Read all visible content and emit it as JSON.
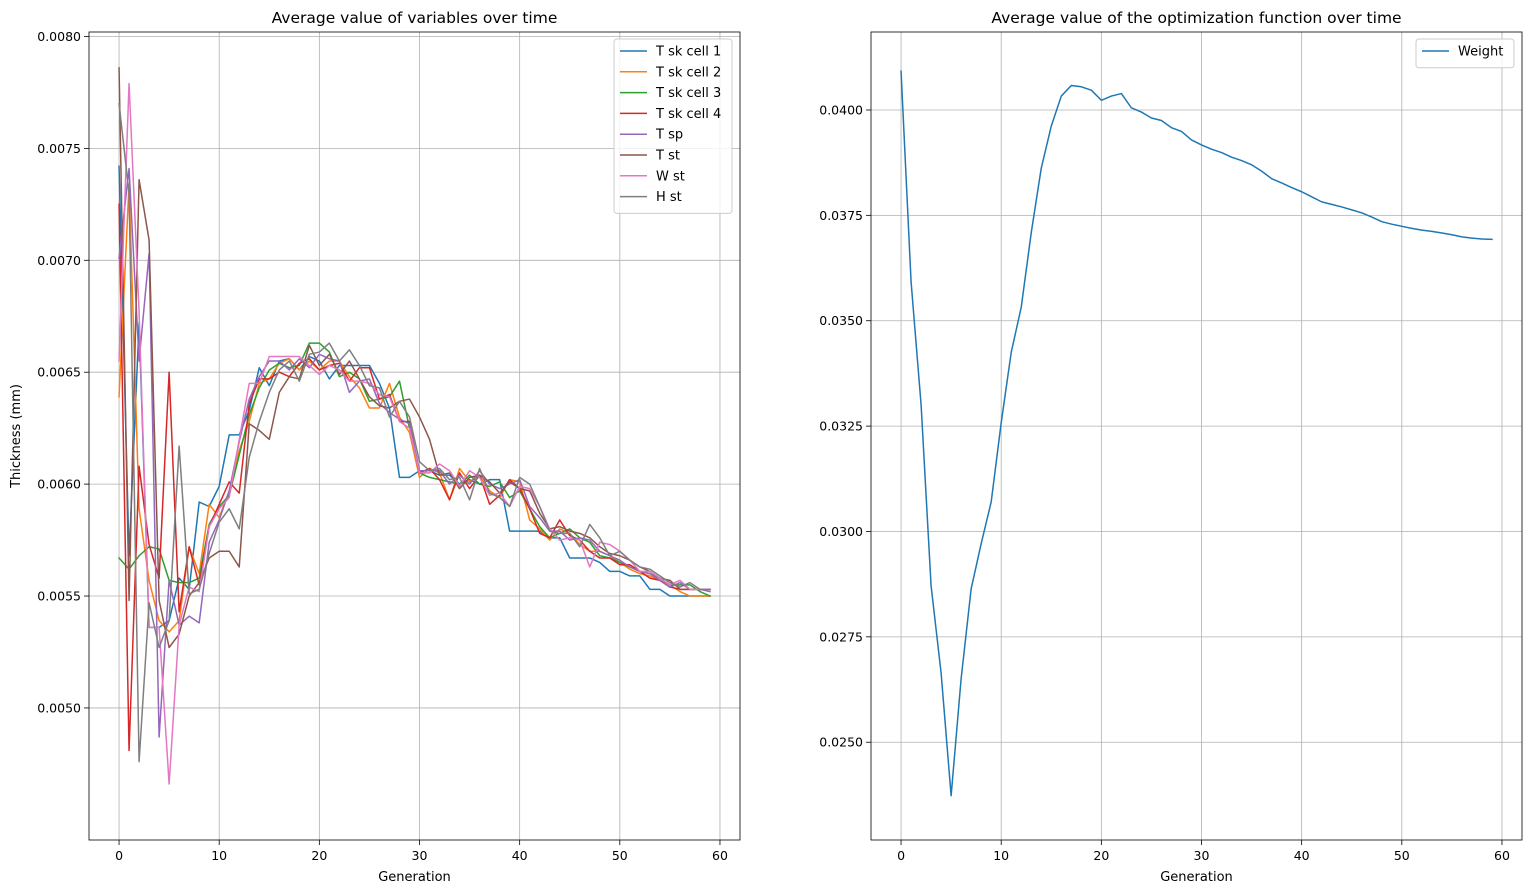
{
  "figure": {
    "background": "#ffffff"
  },
  "chart_data": [
    {
      "type": "line",
      "title": "Average value of variables over time",
      "xlabel": "Generation",
      "ylabel": "Thickness (mm)",
      "xlim": [
        -3,
        62
      ],
      "ylim": [
        0.00441,
        0.00802
      ],
      "xticks": [
        0,
        10,
        20,
        30,
        40,
        50,
        60
      ],
      "xtick_labels": [
        "0",
        "10",
        "20",
        "30",
        "40",
        "50",
        "60"
      ],
      "yticks": [
        0.005,
        0.0055,
        0.006,
        0.0065,
        0.007,
        0.0075,
        0.008
      ],
      "ytick_labels": [
        "0.0050",
        "0.0055",
        "0.0060",
        "0.0065",
        "0.0070",
        "0.0075",
        "0.0080"
      ],
      "grid": true,
      "legend_position": "top-right",
      "x": [
        0,
        1,
        2,
        3,
        4,
        5,
        6,
        7,
        8,
        9,
        10,
        11,
        12,
        13,
        14,
        15,
        16,
        17,
        18,
        19,
        20,
        21,
        22,
        23,
        24,
        25,
        26,
        27,
        28,
        29,
        30,
        31,
        32,
        33,
        34,
        35,
        36,
        37,
        38,
        39,
        40,
        41,
        42,
        43,
        44,
        45,
        46,
        47,
        48,
        49,
        50,
        51,
        52,
        53,
        54,
        55,
        56,
        57,
        58,
        59
      ],
      "series": [
        {
          "name": "T sk cell 1",
          "color": "#1f77b4",
          "values": [
            0.00742,
            0.00568,
            0.00672,
            0.00536,
            0.00536,
            0.00539,
            0.00558,
            0.00553,
            0.00592,
            0.0059,
            0.00599,
            0.00622,
            0.00622,
            0.00633,
            0.00652,
            0.00644,
            0.00655,
            0.00656,
            0.00651,
            0.00657,
            0.00655,
            0.00647,
            0.00653,
            0.00653,
            0.00653,
            0.00653,
            0.00645,
            0.00634,
            0.00603,
            0.00603,
            0.00606,
            0.00606,
            0.00604,
            0.00604,
            0.006,
            0.00602,
            0.006,
            0.00602,
            0.00602,
            0.00579,
            0.00579,
            0.00579,
            0.00579,
            0.00576,
            0.00576,
            0.00567,
            0.00567,
            0.00567,
            0.00565,
            0.00561,
            0.00561,
            0.00559,
            0.00559,
            0.00553,
            0.00553,
            0.0055,
            0.0055,
            0.0055,
            0.0055,
            0.0055
          ]
        },
        {
          "name": "T sk cell 2",
          "color": "#ff7f0e",
          "values": [
            0.00639,
            0.00734,
            0.00589,
            0.00557,
            0.00539,
            0.00534,
            0.00539,
            0.00572,
            0.0056,
            0.00591,
            0.00585,
            0.00597,
            0.00615,
            0.00628,
            0.00645,
            0.00647,
            0.00654,
            0.00656,
            0.00651,
            0.00655,
            0.00651,
            0.00655,
            0.00655,
            0.00648,
            0.00643,
            0.00634,
            0.00634,
            0.00645,
            0.0063,
            0.00623,
            0.00603,
            0.00607,
            0.00605,
            0.00593,
            0.00607,
            0.00601,
            0.00604,
            0.00597,
            0.00594,
            0.00602,
            0.00601,
            0.00584,
            0.0058,
            0.00575,
            0.0058,
            0.00578,
            0.00573,
            0.0057,
            0.0057,
            0.00568,
            0.00565,
            0.00562,
            0.0056,
            0.00559,
            0.00557,
            0.00555,
            0.00552,
            0.0055,
            0.0055,
            0.0055
          ]
        },
        {
          "name": "T sk cell 3",
          "color": "#2ca02c",
          "values": [
            0.00567,
            0.00562,
            0.00568,
            0.00572,
            0.00571,
            0.00557,
            0.00556,
            0.00556,
            0.00558,
            0.00582,
            0.0059,
            0.00595,
            0.00613,
            0.00631,
            0.00643,
            0.00651,
            0.00654,
            0.00652,
            0.00653,
            0.00663,
            0.00663,
            0.00659,
            0.00648,
            0.0065,
            0.00647,
            0.00637,
            0.00638,
            0.00639,
            0.00646,
            0.00625,
            0.00605,
            0.00603,
            0.00602,
            0.00601,
            0.006,
            0.00604,
            0.006,
            0.00599,
            0.00601,
            0.00594,
            0.00597,
            0.00589,
            0.00581,
            0.00576,
            0.00578,
            0.0058,
            0.00576,
            0.00574,
            0.00568,
            0.00567,
            0.00565,
            0.00563,
            0.00561,
            0.0056,
            0.00558,
            0.00555,
            0.00555,
            0.00555,
            0.00552,
            0.0055
          ]
        },
        {
          "name": "T sk cell 4",
          "color": "#d62728",
          "values": [
            0.00725,
            0.00481,
            0.00608,
            0.00573,
            0.00558,
            0.0065,
            0.00543,
            0.00572,
            0.00555,
            0.00581,
            0.00591,
            0.00601,
            0.00596,
            0.00636,
            0.00647,
            0.00647,
            0.0065,
            0.00648,
            0.00654,
            0.00656,
            0.00651,
            0.00653,
            0.00654,
            0.00646,
            0.00652,
            0.00652,
            0.00638,
            0.0064,
            0.00628,
            0.00628,
            0.00605,
            0.00607,
            0.00602,
            0.00593,
            0.00605,
            0.00598,
            0.00604,
            0.00591,
            0.00595,
            0.00602,
            0.00598,
            0.00589,
            0.00578,
            0.00576,
            0.00584,
            0.00577,
            0.00575,
            0.0057,
            0.00567,
            0.00567,
            0.00564,
            0.00564,
            0.00561,
            0.00558,
            0.00557,
            0.00554,
            0.00553,
            0.00553,
            0.00553,
            0.00553
          ]
        },
        {
          "name": "T sp",
          "color": "#9467bd",
          "values": [
            0.00701,
            0.00741,
            0.00655,
            0.00703,
            0.00487,
            0.00557,
            0.00537,
            0.00541,
            0.00538,
            0.00574,
            0.00584,
            0.00597,
            0.00619,
            0.00638,
            0.00648,
            0.00655,
            0.00655,
            0.00651,
            0.00656,
            0.00652,
            0.00658,
            0.00656,
            0.00655,
            0.00641,
            0.00646,
            0.00647,
            0.00636,
            0.00632,
            0.00629,
            0.00627,
            0.00606,
            0.00606,
            0.00606,
            0.006,
            0.00604,
            0.006,
            0.00606,
            0.006,
            0.00598,
            0.006,
            0.00602,
            0.0059,
            0.00585,
            0.00579,
            0.00579,
            0.00575,
            0.00576,
            0.00575,
            0.0057,
            0.00568,
            0.00566,
            0.00563,
            0.00561,
            0.0056,
            0.00557,
            0.00554,
            0.00556,
            0.00553,
            0.00553,
            0.00552
          ]
        },
        {
          "name": "T st",
          "color": "#8c564b",
          "values": [
            0.00786,
            0.00548,
            0.00736,
            0.00709,
            0.00548,
            0.00527,
            0.00533,
            0.0055,
            0.00556,
            0.00567,
            0.0057,
            0.0057,
            0.00563,
            0.00627,
            0.00624,
            0.0062,
            0.00641,
            0.00648,
            0.00647,
            0.00662,
            0.00653,
            0.00658,
            0.00649,
            0.00655,
            0.00647,
            0.00639,
            0.00635,
            0.00634,
            0.00637,
            0.00638,
            0.0063,
            0.0062,
            0.00604,
            0.00605,
            0.00598,
            0.00603,
            0.00604,
            0.00601,
            0.00596,
            0.00601,
            0.00598,
            0.00597,
            0.00587,
            0.0058,
            0.00581,
            0.00579,
            0.00578,
            0.00576,
            0.00572,
            0.00569,
            0.00568,
            0.00566,
            0.00563,
            0.00561,
            0.00558,
            0.00557,
            0.00553,
            0.00553,
            0.00553,
            0.00553
          ]
        },
        {
          "name": "W st",
          "color": "#e377c2",
          "values": [
            0.00655,
            0.00779,
            0.00677,
            0.00536,
            0.00536,
            0.00466,
            0.00537,
            0.00554,
            0.00552,
            0.00581,
            0.00589,
            0.00594,
            0.0062,
            0.00645,
            0.00645,
            0.00657,
            0.00657,
            0.00657,
            0.00657,
            0.00653,
            0.00649,
            0.00653,
            0.00651,
            0.00646,
            0.00646,
            0.00645,
            0.0064,
            0.00639,
            0.00628,
            0.00625,
            0.00605,
            0.00605,
            0.00609,
            0.00606,
            0.00599,
            0.00606,
            0.00603,
            0.00595,
            0.00596,
            0.0059,
            0.00599,
            0.00598,
            0.0059,
            0.0058,
            0.00575,
            0.00576,
            0.00575,
            0.00563,
            0.00574,
            0.00573,
            0.0057,
            0.00566,
            0.00561,
            0.00561,
            0.00558,
            0.00555,
            0.00557,
            0.00553,
            0.00553,
            0.00553
          ]
        },
        {
          "name": "H st",
          "color": "#7f7f7f",
          "values": [
            0.0077,
            0.0073,
            0.00476,
            0.00547,
            0.00527,
            0.00539,
            0.00617,
            0.00551,
            0.00553,
            0.00569,
            0.00583,
            0.00589,
            0.0058,
            0.00612,
            0.00628,
            0.00641,
            0.00651,
            0.00655,
            0.00646,
            0.00658,
            0.00659,
            0.00663,
            0.00655,
            0.0066,
            0.00653,
            0.00644,
            0.00643,
            0.0063,
            0.00637,
            0.0063,
            0.0061,
            0.00606,
            0.00607,
            0.00602,
            0.00603,
            0.00593,
            0.00607,
            0.00596,
            0.00594,
            0.0059,
            0.00603,
            0.006,
            0.0059,
            0.00579,
            0.00578,
            0.00578,
            0.00572,
            0.00582,
            0.00576,
            0.00568,
            0.0057,
            0.00566,
            0.00563,
            0.00562,
            0.00559,
            0.00556,
            0.00554,
            0.00556,
            0.00553,
            0.00553
          ]
        }
      ]
    },
    {
      "type": "line",
      "title": "Average value of the optimization function over time",
      "xlabel": "Generation",
      "ylabel": "",
      "xlim": [
        -3,
        62
      ],
      "ylim": [
        0.02268,
        0.04185
      ],
      "xticks": [
        0,
        10,
        20,
        30,
        40,
        50,
        60
      ],
      "xtick_labels": [
        "0",
        "10",
        "20",
        "30",
        "40",
        "50",
        "60"
      ],
      "yticks": [
        0.025,
        0.0275,
        0.03,
        0.0325,
        0.035,
        0.0375,
        0.04
      ],
      "ytick_labels": [
        "0.0250",
        "0.0275",
        "0.0300",
        "0.0325",
        "0.0350",
        "0.0375",
        "0.0400"
      ],
      "grid": true,
      "legend_position": "top-right",
      "x": [
        0,
        1,
        2,
        3,
        4,
        5,
        6,
        7,
        8,
        9,
        10,
        11,
        12,
        13,
        14,
        15,
        16,
        17,
        18,
        19,
        20,
        21,
        22,
        23,
        24,
        25,
        26,
        27,
        28,
        29,
        30,
        31,
        32,
        33,
        34,
        35,
        36,
        37,
        38,
        39,
        40,
        41,
        42,
        43,
        44,
        45,
        46,
        47,
        48,
        49,
        50,
        51,
        52,
        53,
        54,
        55,
        56,
        57,
        58,
        59
      ],
      "series": [
        {
          "name": "Weight",
          "color": "#1f77b4",
          "values": [
            0.04092,
            0.03593,
            0.03301,
            0.02871,
            0.02664,
            0.02373,
            0.02651,
            0.02864,
            0.02971,
            0.0307,
            0.03258,
            0.03425,
            0.03532,
            0.03709,
            0.03862,
            0.03962,
            0.04033,
            0.04058,
            0.04055,
            0.04047,
            0.04023,
            0.04033,
            0.04039,
            0.04005,
            0.03995,
            0.03981,
            0.03975,
            0.03958,
            0.03949,
            0.03929,
            0.03917,
            0.03907,
            0.03899,
            0.03888,
            0.0388,
            0.0387,
            0.03855,
            0.03837,
            0.03827,
            0.03816,
            0.03806,
            0.03794,
            0.03782,
            0.03776,
            0.0377,
            0.03763,
            0.03756,
            0.03746,
            0.03735,
            0.03729,
            0.03724,
            0.03719,
            0.03715,
            0.03712,
            0.03708,
            0.03704,
            0.03699,
            0.03696,
            0.03694,
            0.03693
          ]
        }
      ]
    }
  ]
}
